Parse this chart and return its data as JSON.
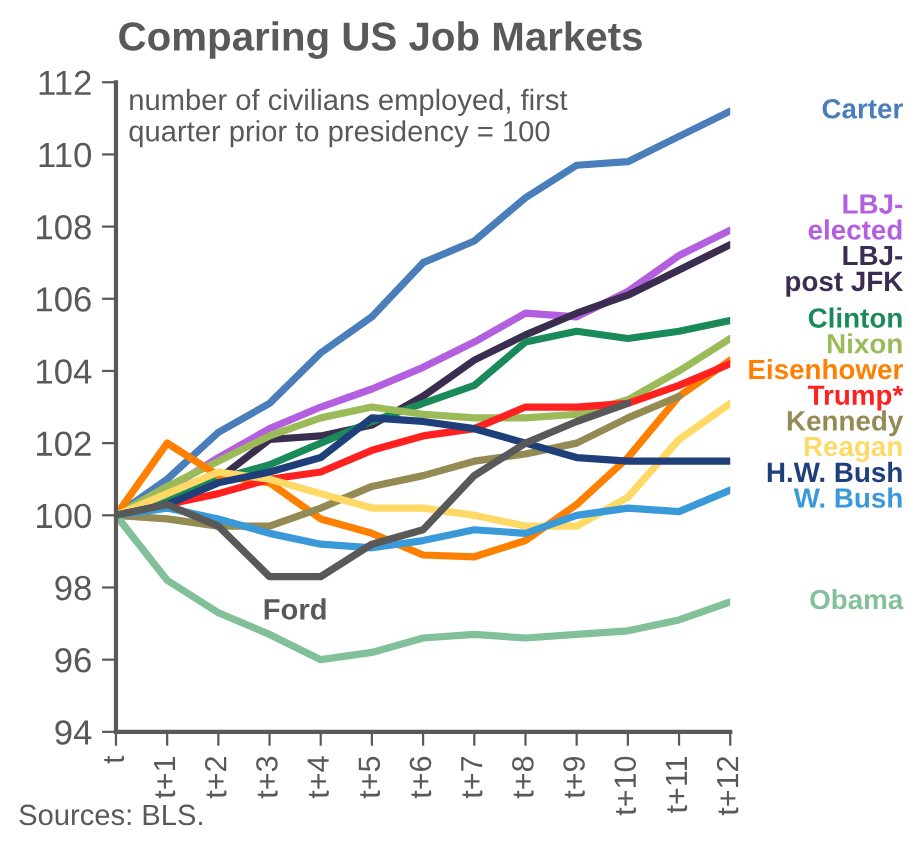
{
  "chart_data": {
    "type": "line",
    "title": "Comparing US Job Markets",
    "subtitle": "number of civilians employed, first quarter prior to presidency = 100",
    "categories": [
      "t",
      "t+1",
      "t+2",
      "t+3",
      "t+4",
      "t+5",
      "t+6",
      "t+7",
      "t+8",
      "t+9",
      "t+10",
      "t+11",
      "t+12"
    ],
    "series": [
      {
        "name": "Carter",
        "color": "#4a7ebb",
        "values": [
          100,
          101,
          102.3,
          103.1,
          104.5,
          105.5,
          107,
          107.6,
          108.8,
          109.7,
          109.8,
          110.5,
          111.2
        ]
      },
      {
        "name": "LBJ-elected",
        "color": "#b35fe0",
        "values": [
          100,
          100.7,
          101.6,
          102.4,
          103,
          103.5,
          104.1,
          104.8,
          105.6,
          105.5,
          106.2,
          107.2,
          107.9
        ]
      },
      {
        "name": "LBJ-post JFK",
        "color": "#3b2d4f",
        "values": [
          100,
          100.5,
          101,
          102.1,
          102.2,
          102.5,
          103.3,
          104.3,
          105,
          105.6,
          106.1,
          106.8,
          107.5
        ]
      },
      {
        "name": "Clinton",
        "color": "#1a8a5a",
        "values": [
          100,
          100.5,
          101,
          101.4,
          102,
          102.6,
          103.1,
          103.6,
          104.8,
          105.1,
          104.9,
          105.1,
          105.4
        ]
      },
      {
        "name": "Nixon",
        "color": "#9bbb59",
        "values": [
          100,
          100.8,
          101.5,
          102.2,
          102.7,
          103,
          102.8,
          102.7,
          102.7,
          102.8,
          103.2,
          104,
          104.9
        ]
      },
      {
        "name": "Eisenhower",
        "color": "#ff8000",
        "values": [
          100,
          102,
          101.1,
          100.9,
          99.9,
          99.5,
          98.9,
          98.85,
          99.3,
          100.3,
          101.6,
          103.3,
          104.3
        ]
      },
      {
        "name": "Trump*",
        "color": "#ff2020",
        "values": [
          100,
          100.3,
          100.6,
          101,
          101.2,
          101.8,
          102.2,
          102.4,
          103,
          103,
          103.1,
          103.6,
          104.2
        ]
      },
      {
        "name": "Kennedy",
        "color": "#948a54",
        "values": [
          100,
          99.9,
          99.7,
          99.7,
          100.2,
          100.8,
          101.1,
          101.5,
          101.7,
          102,
          102.7,
          103.3,
          null
        ]
      },
      {
        "name": "Reagan",
        "color": "#ffd966",
        "values": [
          100,
          100.6,
          101.2,
          101,
          100.6,
          100.2,
          100.2,
          100,
          99.7,
          99.7,
          100.5,
          102.1,
          103.1
        ]
      },
      {
        "name": "H.W. Bush",
        "color": "#1f3f7a",
        "values": [
          100,
          100.3,
          100.9,
          101.2,
          101.6,
          102.7,
          102.6,
          102.4,
          102,
          101.6,
          101.5,
          101.5,
          101.5
        ]
      },
      {
        "name": "W. Bush",
        "color": "#3a9ad9",
        "values": [
          100,
          100.2,
          99.9,
          99.5,
          99.2,
          99.1,
          99.3,
          99.6,
          99.5,
          100,
          100.2,
          100.1,
          100.7
        ]
      },
      {
        "name": "Obama",
        "color": "#82c09a",
        "values": [
          100,
          98.2,
          97.3,
          96.7,
          96,
          96.2,
          96.6,
          96.7,
          96.6,
          96.7,
          96.8,
          97.1,
          97.6
        ]
      },
      {
        "name": "Ford",
        "color": "#595959",
        "values": [
          100,
          100.3,
          99.7,
          98.3,
          98.3,
          99.2,
          99.6,
          101.1,
          102,
          102.6,
          103.1,
          null,
          null
        ]
      }
    ],
    "ylim": [
      94,
      112
    ],
    "yticks": [
      94,
      96,
      98,
      100,
      102,
      104,
      106,
      108,
      110,
      112
    ],
    "grid": false,
    "legend": false,
    "marker": "none",
    "line_style": "solid",
    "annotations": [
      "Sources: BLS."
    ]
  }
}
